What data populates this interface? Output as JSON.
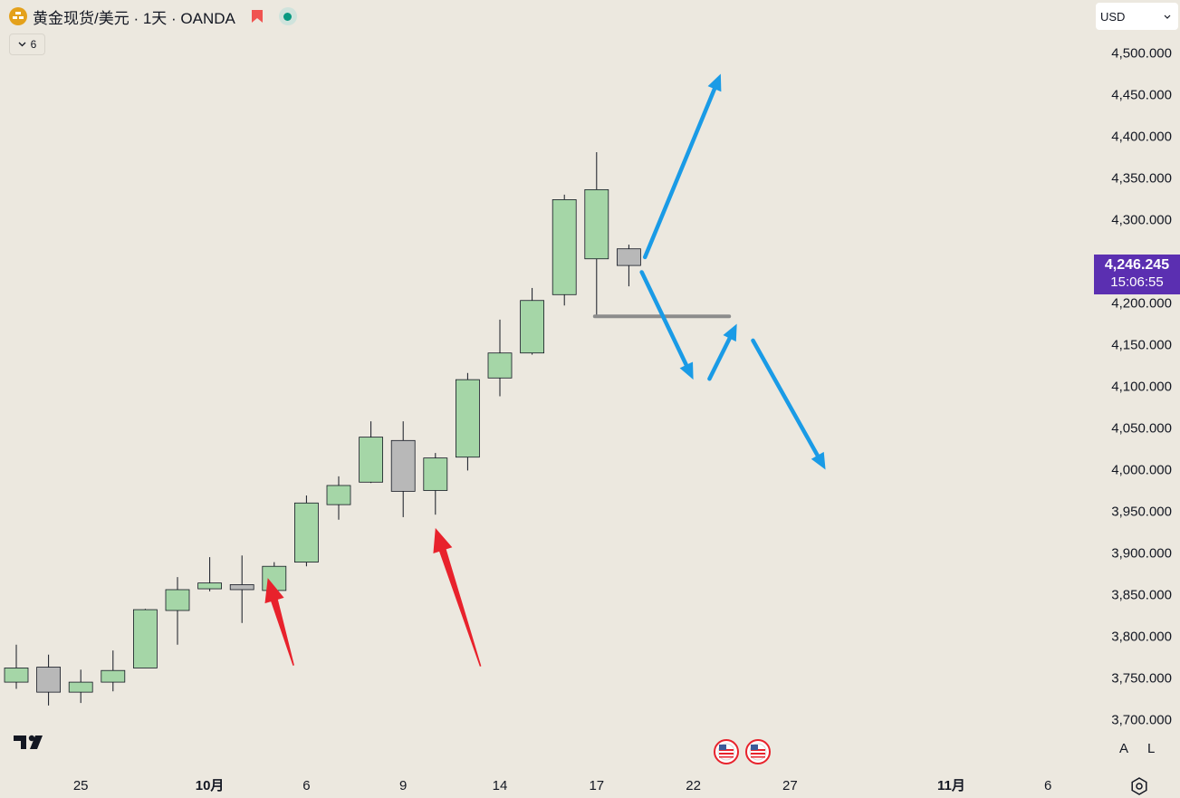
{
  "header": {
    "symbol_title": "黄金现货/美元 · 1天 · OANDA",
    "indicator_count": "6",
    "currency": "USD",
    "icons": [
      "gold-symbol-icon",
      "flag-icon",
      "market-open-icon",
      "chevron-down-icon"
    ]
  },
  "price_badge": {
    "price": "4,246.245",
    "countdown": "15:06:55",
    "color": "#5b2fb1"
  },
  "scale_buttons": {
    "auto": "A",
    "log": "L"
  },
  "colors": {
    "up": "#a5d6a7",
    "down": "#b8b8b8",
    "arrow_blue": "#1a9be6",
    "arrow_red": "#e8222c",
    "level_line": "#8c8c8c"
  },
  "chart_data": {
    "type": "candlestick",
    "y_ticks": [
      "4,500.000",
      "4,450.000",
      "4,400.000",
      "4,350.000",
      "4,300.000",
      "4,250.000",
      "4,200.000",
      "4,150.000",
      "4,100.000",
      "4,050.000",
      "4,000.000",
      "3,950.000",
      "3,900.000",
      "3,850.000",
      "3,800.000",
      "3,750.000",
      "3,700.000"
    ],
    "ylim": [
      3680,
      4540
    ],
    "x_ticks": [
      {
        "label": "25",
        "bold": false,
        "idx": 2
      },
      {
        "label": "10月",
        "bold": true,
        "idx": 6
      },
      {
        "label": "6",
        "bold": false,
        "idx": 9
      },
      {
        "label": "9",
        "bold": false,
        "idx": 12
      },
      {
        "label": "14",
        "bold": false,
        "idx": 15
      },
      {
        "label": "17",
        "bold": false,
        "idx": 18
      },
      {
        "label": "22",
        "bold": false,
        "idx": 21
      },
      {
        "label": "27",
        "bold": false,
        "idx": 24
      },
      {
        "label": "11月",
        "bold": true,
        "idx": 29
      },
      {
        "label": "6",
        "bold": false,
        "idx": 32
      }
    ],
    "candles": [
      {
        "o": 3745,
        "h": 3790,
        "l": 3737,
        "c": 3762
      },
      {
        "o": 3763,
        "h": 3778,
        "l": 3717,
        "c": 3733
      },
      {
        "o": 3733,
        "h": 3760,
        "l": 3720,
        "c": 3745
      },
      {
        "o": 3745,
        "h": 3783,
        "l": 3734,
        "c": 3759
      },
      {
        "o": 3762,
        "h": 3833,
        "l": 3762,
        "c": 3832
      },
      {
        "o": 3831,
        "h": 3871,
        "l": 3790,
        "c": 3856
      },
      {
        "o": 3857,
        "h": 3895,
        "l": 3854,
        "c": 3864
      },
      {
        "o": 3862,
        "h": 3897,
        "l": 3816,
        "c": 3856
      },
      {
        "o": 3855,
        "h": 3889,
        "l": 3838,
        "c": 3884
      },
      {
        "o": 3889,
        "h": 3969,
        "l": 3884,
        "c": 3960
      },
      {
        "o": 3958,
        "h": 3992,
        "l": 3940,
        "c": 3981
      },
      {
        "o": 3985,
        "h": 4058,
        "l": 3984,
        "c": 4039
      },
      {
        "o": 4035,
        "h": 4058,
        "l": 3943,
        "c": 3974
      },
      {
        "o": 3975,
        "h": 4020,
        "l": 3946,
        "c": 4014
      },
      {
        "o": 4015,
        "h": 4116,
        "l": 3999,
        "c": 4108
      },
      {
        "o": 4110,
        "h": 4180,
        "l": 4088,
        "c": 4140
      },
      {
        "o": 4140,
        "h": 4218,
        "l": 4138,
        "c": 4203
      },
      {
        "o": 4210,
        "h": 4330,
        "l": 4197,
        "c": 4324
      },
      {
        "o": 4253,
        "h": 4381,
        "l": 4185,
        "c": 4336
      },
      {
        "o": 4265,
        "h": 4270,
        "l": 4220,
        "c": 4245
      }
    ],
    "level_line": {
      "price": 4184,
      "from_idx": 18,
      "to_idx": 22
    },
    "annotations": {
      "blue_arrows": [
        {
          "from": [
            19.5,
            4255
          ],
          "to": [
            21.85,
            4475
          ]
        },
        {
          "from": [
            19.4,
            4237
          ],
          "to": [
            21.0,
            4108
          ]
        },
        {
          "from": [
            21.5,
            4109
          ],
          "to": [
            22.35,
            4175
          ]
        },
        {
          "from": [
            22.85,
            4155
          ],
          "to": [
            25.1,
            4000
          ]
        }
      ],
      "red_arrows": [
        {
          "from": [
            8.6,
            3765
          ],
          "to": [
            7.8,
            3870
          ]
        },
        {
          "from": [
            14.4,
            3764
          ],
          "to": [
            13.0,
            3930
          ]
        }
      ]
    }
  }
}
